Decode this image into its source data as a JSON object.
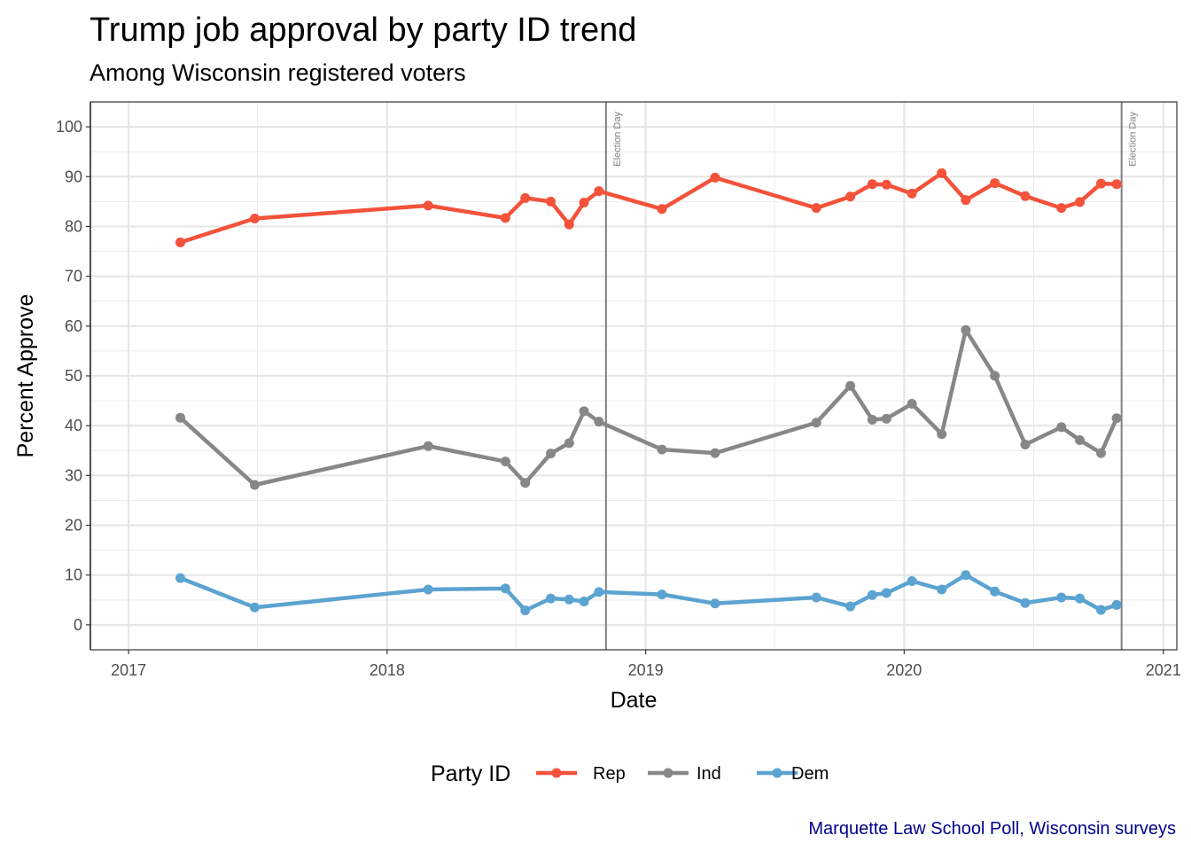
{
  "chart_data": {
    "type": "line",
    "title": "Trump job approval by party ID trend",
    "subtitle": "Among Wisconsin registered voters",
    "xlabel": "Date",
    "ylabel": "Percent Approve",
    "xlim": [
      "2016-11-08",
      "2021-01-20"
    ],
    "ylim": [
      -5,
      105
    ],
    "x_ticks": [
      "2017",
      "2018",
      "2019",
      "2020",
      "2021"
    ],
    "y_ticks": [
      0,
      10,
      20,
      30,
      40,
      50,
      60,
      70,
      80,
      90,
      100
    ],
    "grid": true,
    "legend_title": "Party ID",
    "legend_position": "bottom",
    "caption": "Marquette Law School Poll, Wisconsin surveys",
    "vlines": [
      {
        "date": "2016-11-08",
        "label": ""
      },
      {
        "date": "2018-11-06",
        "label": "Election Day"
      },
      {
        "date": "2020-11-03",
        "label": "Election Day"
      }
    ],
    "series": [
      {
        "name": "Rep",
        "color": "#f4523b",
        "points": [
          {
            "x": "2017-03-15",
            "y": 76.8
          },
          {
            "x": "2017-06-28",
            "y": 81.6
          },
          {
            "x": "2018-02-28",
            "y": 84.2
          },
          {
            "x": "2018-06-17",
            "y": 81.7
          },
          {
            "x": "2018-07-15",
            "y": 85.7
          },
          {
            "x": "2018-08-20",
            "y": 85.0
          },
          {
            "x": "2018-09-15",
            "y": 80.4
          },
          {
            "x": "2018-10-06",
            "y": 84.8
          },
          {
            "x": "2018-10-27",
            "y": 87.1
          },
          {
            "x": "2019-01-24",
            "y": 83.5
          },
          {
            "x": "2019-04-09",
            "y": 89.8
          },
          {
            "x": "2019-08-30",
            "y": 83.7
          },
          {
            "x": "2019-10-17",
            "y": 86.0
          },
          {
            "x": "2019-11-17",
            "y": 88.5
          },
          {
            "x": "2019-12-07",
            "y": 88.4
          },
          {
            "x": "2020-01-12",
            "y": 86.6
          },
          {
            "x": "2020-02-23",
            "y": 90.7
          },
          {
            "x": "2020-03-28",
            "y": 85.3
          },
          {
            "x": "2020-05-08",
            "y": 88.7
          },
          {
            "x": "2020-06-20",
            "y": 86.1
          },
          {
            "x": "2020-08-10",
            "y": 83.7
          },
          {
            "x": "2020-09-05",
            "y": 84.9
          },
          {
            "x": "2020-10-05",
            "y": 88.6
          },
          {
            "x": "2020-10-27",
            "y": 88.5
          }
        ]
      },
      {
        "name": "Ind",
        "color": "#878787",
        "points": [
          {
            "x": "2017-03-15",
            "y": 41.6
          },
          {
            "x": "2017-06-28",
            "y": 28.1
          },
          {
            "x": "2018-02-28",
            "y": 35.9
          },
          {
            "x": "2018-06-17",
            "y": 32.8
          },
          {
            "x": "2018-07-15",
            "y": 28.5
          },
          {
            "x": "2018-08-20",
            "y": 34.4
          },
          {
            "x": "2018-09-15",
            "y": 36.5
          },
          {
            "x": "2018-10-06",
            "y": 42.9
          },
          {
            "x": "2018-10-27",
            "y": 40.8
          },
          {
            "x": "2019-01-24",
            "y": 35.2
          },
          {
            "x": "2019-04-09",
            "y": 34.5
          },
          {
            "x": "2019-08-30",
            "y": 40.6
          },
          {
            "x": "2019-10-17",
            "y": 48.0
          },
          {
            "x": "2019-11-17",
            "y": 41.2
          },
          {
            "x": "2019-12-07",
            "y": 41.4
          },
          {
            "x": "2020-01-12",
            "y": 44.4
          },
          {
            "x": "2020-02-23",
            "y": 38.3
          },
          {
            "x": "2020-03-28",
            "y": 59.2
          },
          {
            "x": "2020-05-08",
            "y": 50.0
          },
          {
            "x": "2020-06-20",
            "y": 36.2
          },
          {
            "x": "2020-08-10",
            "y": 39.7
          },
          {
            "x": "2020-09-05",
            "y": 37.1
          },
          {
            "x": "2020-10-05",
            "y": 34.5
          },
          {
            "x": "2020-10-27",
            "y": 41.5
          }
        ]
      },
      {
        "name": "Dem",
        "color": "#5ba3d0",
        "points": [
          {
            "x": "2017-03-15",
            "y": 9.4
          },
          {
            "x": "2017-06-28",
            "y": 3.5
          },
          {
            "x": "2018-02-28",
            "y": 7.1
          },
          {
            "x": "2018-06-17",
            "y": 7.3
          },
          {
            "x": "2018-07-15",
            "y": 2.9
          },
          {
            "x": "2018-08-20",
            "y": 5.3
          },
          {
            "x": "2018-09-15",
            "y": 5.1
          },
          {
            "x": "2018-10-06",
            "y": 4.7
          },
          {
            "x": "2018-10-27",
            "y": 6.6
          },
          {
            "x": "2019-01-24",
            "y": 6.1
          },
          {
            "x": "2019-04-09",
            "y": 4.3
          },
          {
            "x": "2019-08-30",
            "y": 5.5
          },
          {
            "x": "2019-10-17",
            "y": 3.7
          },
          {
            "x": "2019-11-17",
            "y": 6.0
          },
          {
            "x": "2019-12-07",
            "y": 6.4
          },
          {
            "x": "2020-01-12",
            "y": 8.8
          },
          {
            "x": "2020-02-23",
            "y": 7.1
          },
          {
            "x": "2020-03-28",
            "y": 10.0
          },
          {
            "x": "2020-05-08",
            "y": 6.7
          },
          {
            "x": "2020-06-20",
            "y": 4.4
          },
          {
            "x": "2020-08-10",
            "y": 5.5
          },
          {
            "x": "2020-09-05",
            "y": 5.3
          },
          {
            "x": "2020-10-05",
            "y": 3.0
          },
          {
            "x": "2020-10-27",
            "y": 4.0
          }
        ]
      }
    ]
  }
}
